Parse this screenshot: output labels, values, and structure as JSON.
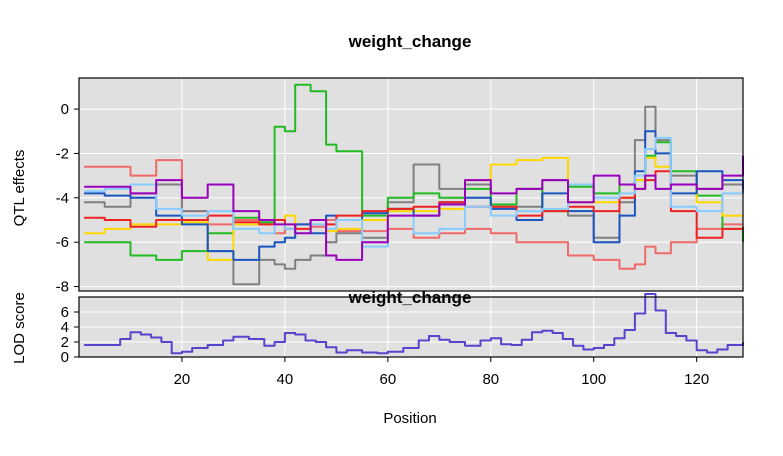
{
  "chart_data": [
    {
      "type": "line",
      "title": "weight_change",
      "xlabel": "",
      "ylabel": "QTL effects",
      "xlim": [
        0,
        129
      ],
      "ylim": [
        -8.2,
        1.4
      ],
      "x_ticks": [
        "20",
        "40",
        "60",
        "80",
        "100",
        "120"
      ],
      "y_ticks": [
        "0",
        "-2",
        "-4",
        "-6",
        "-8"
      ],
      "x_tick_values": [
        20,
        40,
        60,
        80,
        100,
        120
      ],
      "y_tick_values": [
        0,
        -2,
        -4,
        -6,
        -8
      ],
      "grid": true,
      "background": "#e0e0e0",
      "x": [
        1,
        5,
        10,
        15,
        20,
        25,
        30,
        35,
        38,
        40,
        42,
        45,
        48,
        50,
        55,
        60,
        65,
        70,
        75,
        80,
        85,
        90,
        95,
        100,
        105,
        108,
        110,
        112,
        115,
        120,
        125,
        129
      ],
      "series": [
        {
          "color": "#f06a6a",
          "values": [
            -2.6,
            -2.6,
            -3.0,
            -2.3,
            -4.6,
            -5.2,
            -5.0,
            -5.2,
            -5.6,
            -5.4,
            -5.2,
            -5.3,
            -5.0,
            -5.5,
            -5.5,
            -5.4,
            -5.8,
            -5.6,
            -5.4,
            -5.6,
            -6.0,
            -6.0,
            -6.6,
            -6.8,
            -7.2,
            -7.0,
            -6.2,
            -6.5,
            -6.0,
            -5.4,
            -5.2,
            -5.2
          ]
        },
        {
          "color": "#808080",
          "values": [
            -4.2,
            -4.4,
            -3.8,
            -3.4,
            -4.6,
            -6.4,
            -7.9,
            -6.8,
            -7.0,
            -7.2,
            -6.8,
            -6.6,
            -6.0,
            -5.6,
            -5.8,
            -4.2,
            -2.5,
            -3.6,
            -3.4,
            -4.5,
            -4.4,
            -3.2,
            -4.8,
            -5.8,
            -4.2,
            -1.4,
            0.1,
            -1.4,
            -3.0,
            -3.6,
            -3.4,
            -3.8
          ]
        },
        {
          "color": "#22bb22",
          "values": [
            -6.0,
            -6.0,
            -6.6,
            -6.8,
            -6.4,
            -5.6,
            -4.9,
            -5.1,
            -0.8,
            -1.0,
            1.1,
            0.8,
            -1.6,
            -1.9,
            -4.8,
            -4.0,
            -3.8,
            -4.0,
            -3.6,
            -4.3,
            -3.6,
            -4.6,
            -3.5,
            -3.8,
            -3.4,
            -3.2,
            -2.1,
            -1.5,
            -2.8,
            -3.9,
            -5.4,
            -6.0
          ]
        },
        {
          "color": "#ffd700",
          "values": [
            -5.6,
            -5.4,
            -5.2,
            -5.2,
            -5.1,
            -6.8,
            -5.2,
            -5.0,
            -5.2,
            -4.8,
            -5.4,
            -5.0,
            -5.5,
            -5.4,
            -5.0,
            -4.6,
            -4.6,
            -4.5,
            -3.2,
            -2.5,
            -2.3,
            -2.2,
            -4.2,
            -4.2,
            -4.0,
            -3.2,
            -2.2,
            -2.6,
            -3.4,
            -4.2,
            -4.8,
            -4.8
          ]
        },
        {
          "color": "#1a55c0",
          "values": [
            -3.8,
            -3.9,
            -4.0,
            -4.8,
            -5.2,
            -6.4,
            -6.8,
            -6.2,
            -6.0,
            -5.8,
            -5.2,
            -5.6,
            -4.8,
            -5.0,
            -4.7,
            -4.5,
            -4.8,
            -4.2,
            -4.0,
            -4.5,
            -5.0,
            -3.8,
            -4.6,
            -6.0,
            -4.8,
            -2.8,
            -1.0,
            -2.0,
            -3.8,
            -2.8,
            -3.2,
            -3.6
          ]
        },
        {
          "color": "#ee2222",
          "values": [
            -4.9,
            -5.0,
            -5.3,
            -5.0,
            -5.0,
            -4.8,
            -5.1,
            -5.2,
            -5.0,
            -5.4,
            -5.4,
            -5.0,
            -5.2,
            -4.8,
            -4.6,
            -4.5,
            -4.4,
            -4.2,
            -4.4,
            -4.4,
            -4.8,
            -4.6,
            -4.4,
            -4.6,
            -4.0,
            -3.6,
            -3.2,
            -2.8,
            -4.6,
            -5.8,
            -5.4,
            -5.3
          ]
        },
        {
          "color": "#88ccff",
          "values": [
            -3.7,
            -3.6,
            -3.4,
            -4.5,
            -4.8,
            -4.6,
            -5.4,
            -5.6,
            -5.2,
            -5.4,
            -5.6,
            -5.2,
            -5.4,
            -5.0,
            -6.2,
            -4.8,
            -5.6,
            -5.4,
            -4.4,
            -4.8,
            -4.6,
            -4.5,
            -3.4,
            -4.0,
            -3.8,
            -3.0,
            -1.8,
            -1.3,
            -4.4,
            -4.6,
            -3.8,
            -3.8
          ]
        },
        {
          "color": "#9900bb",
          "values": [
            -3.5,
            -3.5,
            -3.8,
            -3.2,
            -4.0,
            -3.4,
            -4.6,
            -5.0,
            -5.2,
            -5.2,
            -5.6,
            -5.0,
            -6.6,
            -6.8,
            -6.0,
            -4.8,
            -4.8,
            -4.3,
            -3.2,
            -3.8,
            -3.6,
            -3.2,
            -4.2,
            -3.0,
            -3.4,
            -3.6,
            -3.0,
            -3.6,
            -3.4,
            -3.6,
            -3.0,
            -2.1
          ]
        }
      ]
    },
    {
      "type": "line",
      "title": "weight_change",
      "xlabel": "Position",
      "ylabel": "LOD score",
      "xlim": [
        0,
        129
      ],
      "ylim": [
        0,
        8
      ],
      "x_ticks": [
        "20",
        "40",
        "60",
        "80",
        "100",
        "120"
      ],
      "y_ticks": [
        "0",
        "2",
        "4",
        "6"
      ],
      "x_tick_values": [
        20,
        40,
        60,
        80,
        100,
        120
      ],
      "y_tick_values": [
        0,
        2,
        4,
        6
      ],
      "grid": true,
      "background": "#e0e0e0",
      "series": [
        {
          "color": "#5544cc",
          "x": [
            1,
            5,
            8,
            10,
            12,
            14,
            16,
            18,
            20,
            22,
            25,
            28,
            30,
            33,
            36,
            38,
            40,
            42,
            44,
            46,
            48,
            50,
            52,
            55,
            58,
            60,
            63,
            66,
            68,
            70,
            72,
            75,
            78,
            80,
            82,
            84,
            86,
            88,
            90,
            92,
            94,
            96,
            98,
            100,
            102,
            104,
            106,
            108,
            110,
            112,
            114,
            116,
            118,
            120,
            122,
            124,
            126,
            129
          ],
          "values": [
            1.6,
            1.6,
            2.4,
            3.3,
            3.0,
            2.6,
            2.0,
            0.5,
            0.7,
            1.2,
            1.6,
            2.2,
            2.7,
            2.4,
            1.5,
            2.0,
            3.2,
            3.0,
            2.2,
            2.0,
            1.3,
            0.6,
            0.9,
            0.6,
            0.5,
            0.7,
            1.2,
            2.2,
            2.8,
            2.3,
            2.0,
            1.5,
            2.2,
            2.5,
            1.7,
            1.6,
            2.3,
            3.3,
            3.5,
            3.2,
            2.4,
            1.5,
            1.0,
            1.2,
            1.6,
            2.5,
            3.6,
            5.8,
            8.4,
            6.2,
            3.2,
            2.8,
            2.2,
            0.9,
            0.6,
            1.0,
            1.6,
            2.0
          ]
        }
      ]
    }
  ]
}
